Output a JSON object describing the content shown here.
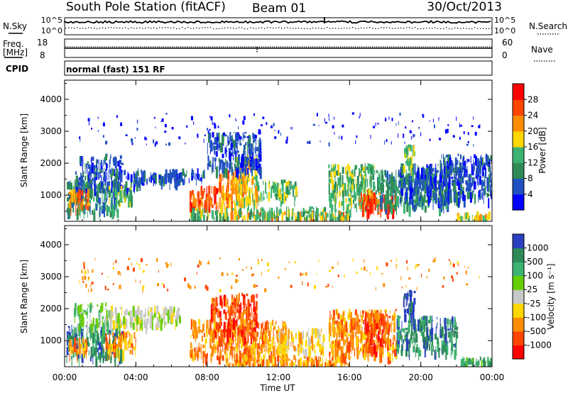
{
  "header": {
    "station": "South Pole Station (fitACF)",
    "beam": "Beam 01",
    "date": "30/Oct/2013"
  },
  "status_panels": {
    "nsky_label": "N.Sky",
    "nsearch_label": "N.Search",
    "noise_ticks": [
      "10^5",
      "10^0"
    ],
    "freq_label_top": "Freq.",
    "freq_label_unit": "[MHz]",
    "freq_ticks": [
      18,
      8
    ],
    "nave_label": "Nave",
    "nave_ticks": [
      60,
      0
    ],
    "cpid_label": "CPID",
    "cpid_value": "normal (fast) 151 RF"
  },
  "colors": {
    "power": [
      "#0000ff",
      "#2050c0",
      "#2e8b57",
      "#3cb371",
      "#ffd700",
      "#ff8c00",
      "#ff4500",
      "#ff0000"
    ],
    "velocity": [
      "#2a3fbf",
      "#2e8b57",
      "#3cb371",
      "#66cd00",
      "#c8c8c8",
      "#ffd700",
      "#ff8c00",
      "#ff4500",
      "#ff0000"
    ]
  },
  "chart_data": [
    {
      "type": "heatmap",
      "panel": "power",
      "xlabel": "Time UT",
      "ylabel": "Slant Range [km]",
      "x_ticks": [
        "00:00",
        "04:00",
        "08:00",
        "12:00",
        "16:00",
        "20:00",
        "00:00"
      ],
      "xlim_hours": [
        0,
        24
      ],
      "ylim": [
        180,
        4600
      ],
      "y_ticks": [
        1000,
        2000,
        3000,
        4000
      ],
      "colorbar_label": "Power [dB]",
      "colorbar_ticks": [
        4,
        8,
        12,
        16,
        20,
        24,
        28
      ],
      "colorbar_range": [
        0,
        32
      ],
      "regions": [
        {
          "t0": 0.1,
          "t1": 3.0,
          "r0": 500,
          "r1": 1500,
          "level": 2
        },
        {
          "t0": 0.6,
          "t1": 4.2,
          "r0": 1200,
          "r1": 1800,
          "level": 1
        },
        {
          "t0": 0.8,
          "t1": 3.2,
          "r0": 1800,
          "r1": 2300,
          "level": 1
        },
        {
          "t0": 3.5,
          "t1": 7.8,
          "r0": 1500,
          "r1": 1850,
          "level": 1
        },
        {
          "t0": 0.2,
          "t1": 1.4,
          "r0": 700,
          "r1": 1200,
          "level": 5
        },
        {
          "t0": 2.4,
          "t1": 3.8,
          "r0": 800,
          "r1": 1300,
          "level": 3
        },
        {
          "t0": 7.0,
          "t1": 8.6,
          "r0": 600,
          "r1": 1300,
          "level": 6
        },
        {
          "t0": 8.6,
          "t1": 10.2,
          "r0": 700,
          "r1": 1800,
          "level": 5
        },
        {
          "t0": 9.6,
          "t1": 10.8,
          "r0": 800,
          "r1": 2300,
          "level": 4
        },
        {
          "t0": 10.8,
          "t1": 13.0,
          "r0": 900,
          "r1": 1500,
          "level": 3
        },
        {
          "t0": 8.0,
          "t1": 11.0,
          "r0": 1800,
          "r1": 3000,
          "level": 1
        },
        {
          "t0": 9.0,
          "t1": 16.0,
          "r0": 380,
          "r1": 520,
          "level": 5
        },
        {
          "t0": 7.0,
          "t1": 16.0,
          "r0": 300,
          "r1": 650,
          "level": 3
        },
        {
          "t0": 14.8,
          "t1": 17.5,
          "r0": 700,
          "r1": 2000,
          "level": 3
        },
        {
          "t0": 16.5,
          "t1": 18.6,
          "r0": 550,
          "r1": 1200,
          "level": 6
        },
        {
          "t0": 17.5,
          "t1": 21.5,
          "r0": 650,
          "r1": 1800,
          "level": 2
        },
        {
          "t0": 18.8,
          "t1": 22.2,
          "r0": 900,
          "r1": 2000,
          "level": 1
        },
        {
          "t0": 19.0,
          "t1": 19.6,
          "r0": 1800,
          "r1": 2600,
          "level": 3
        },
        {
          "t0": 22.0,
          "t1": 23.8,
          "r0": 300,
          "r1": 500,
          "level": 4
        },
        {
          "t0": 21.0,
          "t1": 24.0,
          "r0": 900,
          "r1": 2300,
          "level": 1
        },
        {
          "t0": 0.5,
          "t1": 23.5,
          "r0": 2600,
          "r1": 3600,
          "level": 0
        }
      ]
    },
    {
      "type": "heatmap",
      "panel": "velocity",
      "xlabel": "Time UT",
      "ylabel": "Slant Range [km]",
      "x_ticks": [
        "00:00",
        "04:00",
        "08:00",
        "12:00",
        "16:00",
        "20:00",
        "00:00"
      ],
      "xlim_hours": [
        0,
        24
      ],
      "ylim": [
        180,
        4600
      ],
      "y_ticks": [
        1000,
        2000,
        3000,
        4000
      ],
      "colorbar_label": "Velocity [m s⁻¹]",
      "colorbar_ticks": [
        "1000",
        "500",
        "100",
        "25",
        "-25",
        "-100",
        "-500",
        "-1000"
      ],
      "regions": [
        {
          "t0": 0.1,
          "t1": 3.2,
          "r0": 500,
          "r1": 1500,
          "level": 1
        },
        {
          "t0": 0.5,
          "t1": 2.5,
          "r0": 1400,
          "r1": 2200,
          "level": 3
        },
        {
          "t0": 2.5,
          "t1": 6.5,
          "r0": 1500,
          "r1": 2100,
          "level": 4
        },
        {
          "t0": 0.2,
          "t1": 1.2,
          "r0": 600,
          "r1": 1100,
          "level": 6
        },
        {
          "t0": 2.2,
          "t1": 4.0,
          "r0": 700,
          "r1": 1300,
          "level": 6
        },
        {
          "t0": 7.0,
          "t1": 12.5,
          "r0": 500,
          "r1": 1700,
          "level": 6
        },
        {
          "t0": 8.2,
          "t1": 10.8,
          "r0": 1200,
          "r1": 2500,
          "level": 7
        },
        {
          "t0": 12.0,
          "t1": 14.5,
          "r0": 700,
          "r1": 1400,
          "level": 5
        },
        {
          "t0": 9.0,
          "t1": 16.0,
          "r0": 260,
          "r1": 560,
          "level": 6
        },
        {
          "t0": 14.8,
          "t1": 18.6,
          "r0": 550,
          "r1": 2000,
          "level": 6
        },
        {
          "t0": 16.8,
          "t1": 18.2,
          "r0": 800,
          "r1": 1900,
          "level": 7
        },
        {
          "t0": 18.6,
          "t1": 22.0,
          "r0": 700,
          "r1": 1800,
          "level": 1
        },
        {
          "t0": 19.0,
          "t1": 19.6,
          "r0": 1800,
          "r1": 2600,
          "level": 0
        },
        {
          "t0": 22.2,
          "t1": 23.9,
          "r0": 300,
          "r1": 500,
          "level": 2
        },
        {
          "t0": 0.5,
          "t1": 23.5,
          "r0": 2600,
          "r1": 3600,
          "level": 6
        }
      ]
    }
  ]
}
